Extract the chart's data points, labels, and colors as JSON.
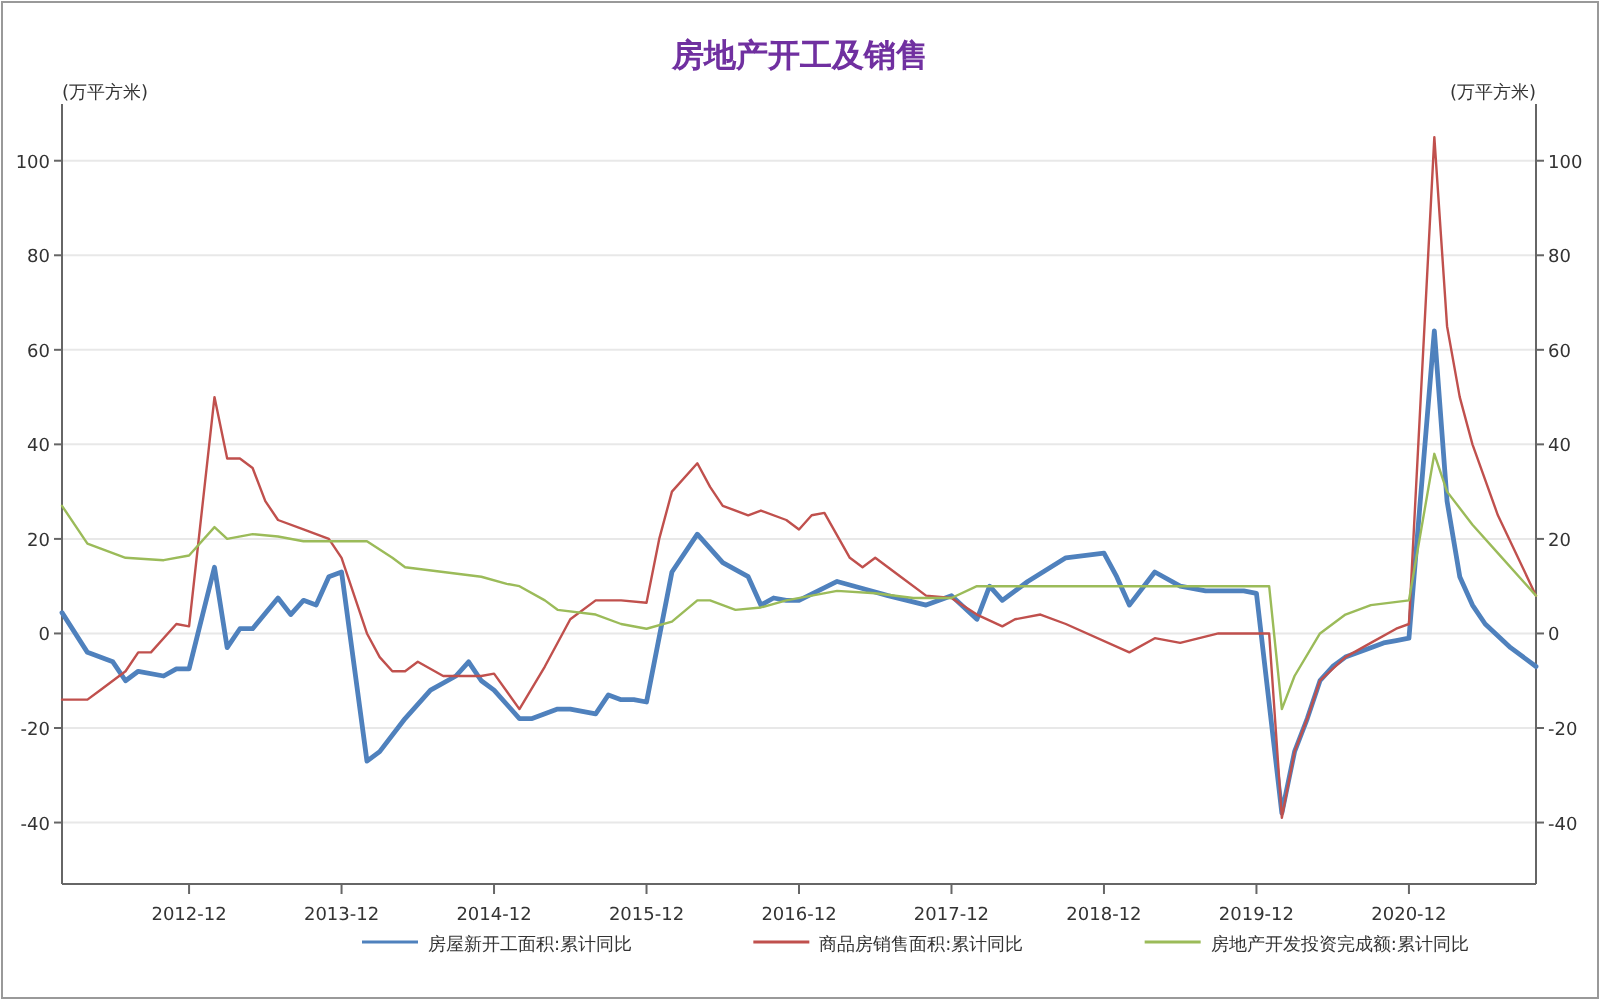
{
  "chart_data": {
    "type": "line",
    "title": "房地产开工及销售",
    "ylabel": "(万平方米)",
    "y2label": "(万平方米)",
    "xlim": [
      "2012-02",
      "2021-10"
    ],
    "xticks": [
      "2012-12",
      "2013-12",
      "2014-12",
      "2015-12",
      "2016-12",
      "2017-12",
      "2018-12",
      "2019-12",
      "2020-12"
    ],
    "ylim": [
      -53,
      112
    ],
    "yticks": [
      -40,
      -20,
      0,
      20,
      40,
      60,
      80,
      100
    ],
    "y2lim": [
      -53,
      112
    ],
    "y2ticks": [
      -40,
      -20,
      0,
      20,
      40,
      60,
      80,
      100
    ],
    "grid": "y",
    "legend": "bottom",
    "series": [
      {
        "name": "房屋新开工面积:累计同比",
        "color": "#4f81bd",
        "x": [
          "2012-02",
          "2012-04",
          "2012-06",
          "2012-07",
          "2012-08",
          "2012-10",
          "2012-11",
          "2012-12",
          "2013-02",
          "2013-03",
          "2013-04",
          "2013-05",
          "2013-07",
          "2013-08",
          "2013-09",
          "2013-10",
          "2013-11",
          "2013-12",
          "2014-02",
          "2014-03",
          "2014-05",
          "2014-07",
          "2014-09",
          "2014-10",
          "2014-11",
          "2014-12",
          "2015-02",
          "2015-03",
          "2015-05",
          "2015-06",
          "2015-08",
          "2015-09",
          "2015-10",
          "2015-11",
          "2015-12",
          "2016-02",
          "2016-04",
          "2016-06",
          "2016-08",
          "2016-09",
          "2016-10",
          "2016-11",
          "2016-12",
          "2017-03",
          "2017-05",
          "2017-07",
          "2017-10",
          "2017-12",
          "2018-02",
          "2018-03",
          "2018-04",
          "2018-06",
          "2018-09",
          "2018-12",
          "2019-01",
          "2019-02",
          "2019-04",
          "2019-06",
          "2019-08",
          "2019-11",
          "2019-12",
          "2020-02",
          "2020-03",
          "2020-04",
          "2020-05",
          "2020-06",
          "2020-07",
          "2020-09",
          "2020-10",
          "2020-11",
          "2020-12",
          "2021-02",
          "2021-03",
          "2021-04",
          "2021-05",
          "2021-06",
          "2021-08",
          "2021-10"
        ],
        "values": [
          4.4,
          -4,
          -6,
          -10,
          -8,
          -9,
          -7.5,
          -7.5,
          14,
          -3,
          1,
          1,
          7.5,
          4,
          7,
          6,
          12,
          13,
          -27,
          -25,
          -18,
          -12,
          -9,
          -6,
          -10,
          -12,
          -18,
          -18,
          -16,
          -16,
          -17,
          -13,
          -14,
          -14,
          -14.5,
          13,
          21,
          15,
          12,
          6,
          7.5,
          7,
          7,
          11,
          9.5,
          8,
          6,
          8,
          3,
          10,
          7,
          11,
          16,
          17,
          12,
          6,
          13,
          10,
          9,
          9,
          8.5,
          -38,
          -25,
          -18,
          -10,
          -7,
          -5,
          -3,
          -2,
          -1.5,
          -1,
          64,
          28,
          12,
          6,
          2,
          -3,
          -7
        ]
      },
      {
        "name": "商品房销售面积:累计同比",
        "color": "#c0504d",
        "x": [
          "2012-02",
          "2012-04",
          "2012-05",
          "2012-06",
          "2012-07",
          "2012-08",
          "2012-09",
          "2012-11",
          "2012-12",
          "2013-02",
          "2013-03",
          "2013-04",
          "2013-05",
          "2013-06",
          "2013-07",
          "2013-09",
          "2013-11",
          "2013-12",
          "2014-02",
          "2014-03",
          "2014-04",
          "2014-05",
          "2014-06",
          "2014-08",
          "2014-11",
          "2014-12",
          "2015-02",
          "2015-04",
          "2015-06",
          "2015-08",
          "2015-10",
          "2015-12",
          "2016-01",
          "2016-02",
          "2016-04",
          "2016-05",
          "2016-06",
          "2016-08",
          "2016-09",
          "2016-11",
          "2016-12",
          "2017-01",
          "2017-02",
          "2017-04",
          "2017-05",
          "2017-06",
          "2017-08",
          "2017-10",
          "2017-12",
          "2018-02",
          "2018-04",
          "2018-05",
          "2018-07",
          "2018-09",
          "2019-02",
          "2019-04",
          "2019-06",
          "2019-09",
          "2020-01",
          "2020-02",
          "2020-03",
          "2020-04",
          "2020-05",
          "2020-07",
          "2020-09",
          "2020-11",
          "2020-12",
          "2021-02",
          "2021-03",
          "2021-04",
          "2021-05",
          "2021-07",
          "2021-10"
        ],
        "values": [
          -14,
          -14,
          -12,
          -10,
          -8,
          -4,
          -4,
          2,
          1.5,
          50,
          37,
          37,
          35,
          28,
          24,
          22,
          20,
          16,
          0,
          -5,
          -8,
          -8,
          -6,
          -9,
          -9,
          -8.5,
          -16,
          -7,
          3,
          7,
          7,
          6.5,
          20,
          30,
          36,
          31,
          27,
          25,
          26,
          24,
          22,
          25,
          25.5,
          16,
          14,
          16,
          12,
          8,
          7.5,
          4,
          1.5,
          3,
          4,
          2,
          -4,
          -1,
          -2,
          0,
          0,
          -39,
          -25,
          -18,
          -10,
          -5,
          -2,
          1,
          2,
          105,
          65,
          50,
          40,
          25,
          8
        ]
      },
      {
        "name": "房地产开发投资完成额:累计同比",
        "color": "#9bbb59",
        "x": [
          "2012-02",
          "2012-04",
          "2012-05",
          "2012-07",
          "2012-10",
          "2012-12",
          "2013-02",
          "2013-03",
          "2013-05",
          "2013-07",
          "2013-09",
          "2013-12",
          "2014-02",
          "2014-04",
          "2014-05",
          "2014-08",
          "2014-11",
          "2015-01",
          "2015-02",
          "2015-04",
          "2015-05",
          "2015-08",
          "2015-10",
          "2015-12",
          "2016-02",
          "2016-04",
          "2016-05",
          "2016-07",
          "2016-09",
          "2016-11",
          "2017-01",
          "2017-03",
          "2017-06",
          "2017-09",
          "2017-12",
          "2018-02",
          "2018-05",
          "2018-10",
          "2019-01",
          "2019-04",
          "2019-12",
          "2020-01",
          "2020-02",
          "2020-03",
          "2020-05",
          "2020-07",
          "2020-09",
          "2020-12",
          "2021-02",
          "2021-03",
          "2021-05",
          "2021-07",
          "2021-10"
        ],
        "values": [
          27,
          19,
          18,
          16,
          15.5,
          16.5,
          22.5,
          20,
          21,
          20.5,
          19.5,
          19.5,
          19.5,
          16,
          14,
          13,
          12,
          10.5,
          10,
          7,
          5,
          4,
          2,
          1,
          2.5,
          7,
          7,
          5,
          5.5,
          7,
          8,
          9,
          8.5,
          7.5,
          7.5,
          10,
          10,
          10,
          10,
          10,
          10,
          10,
          -16,
          -9,
          0,
          4,
          6,
          7,
          38,
          30,
          23,
          17,
          8
        ]
      }
    ]
  }
}
